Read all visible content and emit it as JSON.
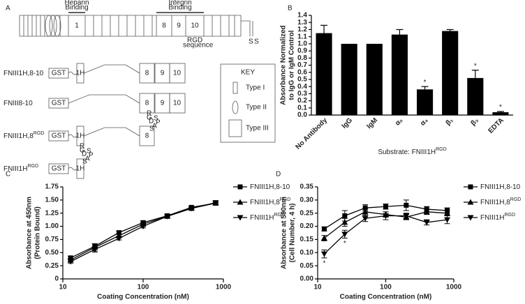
{
  "diagram": {
    "label": "A",
    "heparin": [
      "Heparin",
      "Binding"
    ],
    "integrin": [
      "Integrin",
      "Binding"
    ],
    "modules": [
      "1",
      "8",
      "9",
      "10"
    ],
    "rgd_sequence": [
      "RGD",
      "sequence"
    ],
    "ss": [
      "S",
      "S"
    ],
    "constructs": [
      {
        "name": "FNIII1H,8-10",
        "gst": "GST",
        "h": "1H",
        "modules": [
          "8",
          "9",
          "10"
        ]
      },
      {
        "name": "FNIII8-10",
        "gst": "GST",
        "modules": [
          "8",
          "9",
          "10"
        ]
      },
      {
        "name": "FNIII1H,8",
        "sup": "RGD",
        "gst": "GST",
        "h": "1H",
        "modules": [
          "8"
        ],
        "loop": [
          "R",
          "G",
          "D",
          "S",
          "P",
          "A",
          "S"
        ]
      },
      {
        "name": "FNIII1H",
        "sup": "RGD",
        "gst": "GST",
        "h": "1H",
        "loop": [
          "R",
          "G",
          "D",
          "S",
          "P",
          "A",
          "S"
        ]
      }
    ],
    "key": {
      "title": "KEY",
      "items": [
        "Type I",
        "Type II",
        "Type III"
      ]
    }
  },
  "chart_data": [
    {
      "type": "bar",
      "label": "B",
      "ylabel": [
        "Absorbance Normalized",
        "to IgG or IgM Control"
      ],
      "xlabel": "Substrate: FNIII1H",
      "xlabel_sup": "RGD",
      "categories": [
        "No Antibody",
        "IgG",
        "IgM",
        "α₅",
        "α₄",
        "β₁",
        "β₃",
        "EDTA"
      ],
      "values": [
        1.15,
        1.0,
        1.0,
        1.13,
        0.36,
        1.18,
        0.52,
        0.04
      ],
      "errors": [
        0.11,
        0,
        0,
        0.07,
        0.04,
        0.02,
        0.11,
        0.01
      ],
      "color": "#000000",
      "ylim": [
        0,
        1.4
      ],
      "yticks": [
        {
          "value": 0,
          "label": "0.0"
        },
        0.1,
        0.2,
        0.3,
        0.4,
        0.5,
        0.6,
        0.7,
        0.8,
        0.9,
        {
          "value": 1,
          "label": "1.0"
        },
        1.1,
        1.2,
        1.3,
        1.4
      ],
      "annotations": [
        {
          "text": "*",
          "x": "α₄"
        },
        {
          "text": "*",
          "x": "β₃"
        },
        {
          "text": "*",
          "x": "EDTA"
        }
      ]
    },
    {
      "type": "line",
      "label": "C",
      "log_x": true,
      "ylabel": [
        "Absorbance at 450nm",
        "(Protein Bound)"
      ],
      "xlabel": "Coating Concentration (nM)",
      "x": [
        12.5,
        25,
        50,
        100,
        200,
        400,
        800
      ],
      "xlim": [
        10,
        1000
      ],
      "xticks": [
        10,
        100,
        1000
      ],
      "ylim": [
        0,
        1.75
      ],
      "yticks": [
        0,
        0.25,
        {
          "value": 0.5,
          "label": "0.50"
        },
        0.75,
        {
          "value": 1,
          "label": "1.00"
        },
        1.25,
        {
          "value": 1.5,
          "label": "1.50"
        },
        1.75
      ],
      "series": [
        {
          "name": "FNIII1H,8-10",
          "marker": "square",
          "color": "#000000",
          "values": [
            0.4,
            0.62,
            0.88,
            1.07,
            1.2,
            1.36,
            1.44
          ],
          "errors": [
            0.03,
            0.05,
            0.03,
            0.03,
            0.02,
            0.02,
            0.02
          ]
        },
        {
          "name": "FNIII1H,8",
          "name_sup": "RGD",
          "marker": "triangle-up",
          "color": "#000000",
          "values": [
            0.36,
            0.6,
            0.82,
            1.04,
            1.19,
            1.34,
            1.44
          ],
          "errors": [
            0.03,
            0.07,
            0.03,
            0.03,
            0.02,
            0.02,
            0.02
          ]
        },
        {
          "name": "FNIII1H",
          "name_sup": "RGD",
          "marker": "triangle-down",
          "color": "#000000",
          "values": [
            0.33,
            0.56,
            0.77,
            1.0,
            1.19,
            1.34,
            1.45
          ],
          "errors": [
            0.03,
            0.05,
            0.03,
            0.03,
            0.02,
            0.02,
            0.02
          ]
        }
      ]
    },
    {
      "type": "line",
      "label": "D",
      "log_x": true,
      "ylabel": [
        "Absorbance at 590nm",
        "(Cell Number, 4 h)"
      ],
      "xlabel": "Coating Concentration (nM)",
      "x": [
        12.5,
        25,
        50,
        100,
        200,
        400,
        800
      ],
      "xlim": [
        10,
        1000
      ],
      "xticks": [
        10,
        100,
        1000
      ],
      "ylim": [
        0,
        0.35
      ],
      "yticks": [
        {
          "value": 0,
          "label": "0.00"
        },
        0.05,
        {
          "value": 0.1,
          "label": "0.10"
        },
        0.15,
        {
          "value": 0.2,
          "label": "0.20"
        },
        0.25,
        {
          "value": 0.3,
          "label": "0.30"
        },
        0.35
      ],
      "series": [
        {
          "name": "FNIII1H,8-10",
          "marker": "square",
          "color": "#000000",
          "values": [
            0.19,
            0.24,
            0.27,
            0.275,
            0.28,
            0.265,
            0.26
          ],
          "errors": [
            0.008,
            0.02,
            0.012,
            0.01,
            0.02,
            0.01,
            0.01
          ]
        },
        {
          "name": "FNIII1H,8",
          "name_sup": "RGD",
          "marker": "triangle-up",
          "color": "#000000",
          "values": [
            0.155,
            0.215,
            0.255,
            0.245,
            0.235,
            0.255,
            0.25
          ],
          "errors": [
            0.01,
            0.015,
            0.012,
            0.01,
            0.01,
            0.01,
            0.01
          ]
        },
        {
          "name": "FNIII1H",
          "name_sup": "RGD",
          "marker": "triangle-down",
          "color": "#000000",
          "values": [
            0.095,
            0.17,
            0.23,
            0.24,
            0.24,
            0.215,
            0.225
          ],
          "errors": [
            0.015,
            0.015,
            0.012,
            0.015,
            0.01,
            0.01,
            0.015
          ]
        }
      ],
      "annotations": [
        {
          "text": "*",
          "x": 12.5
        },
        {
          "text": "*",
          "x": 25
        }
      ]
    }
  ]
}
